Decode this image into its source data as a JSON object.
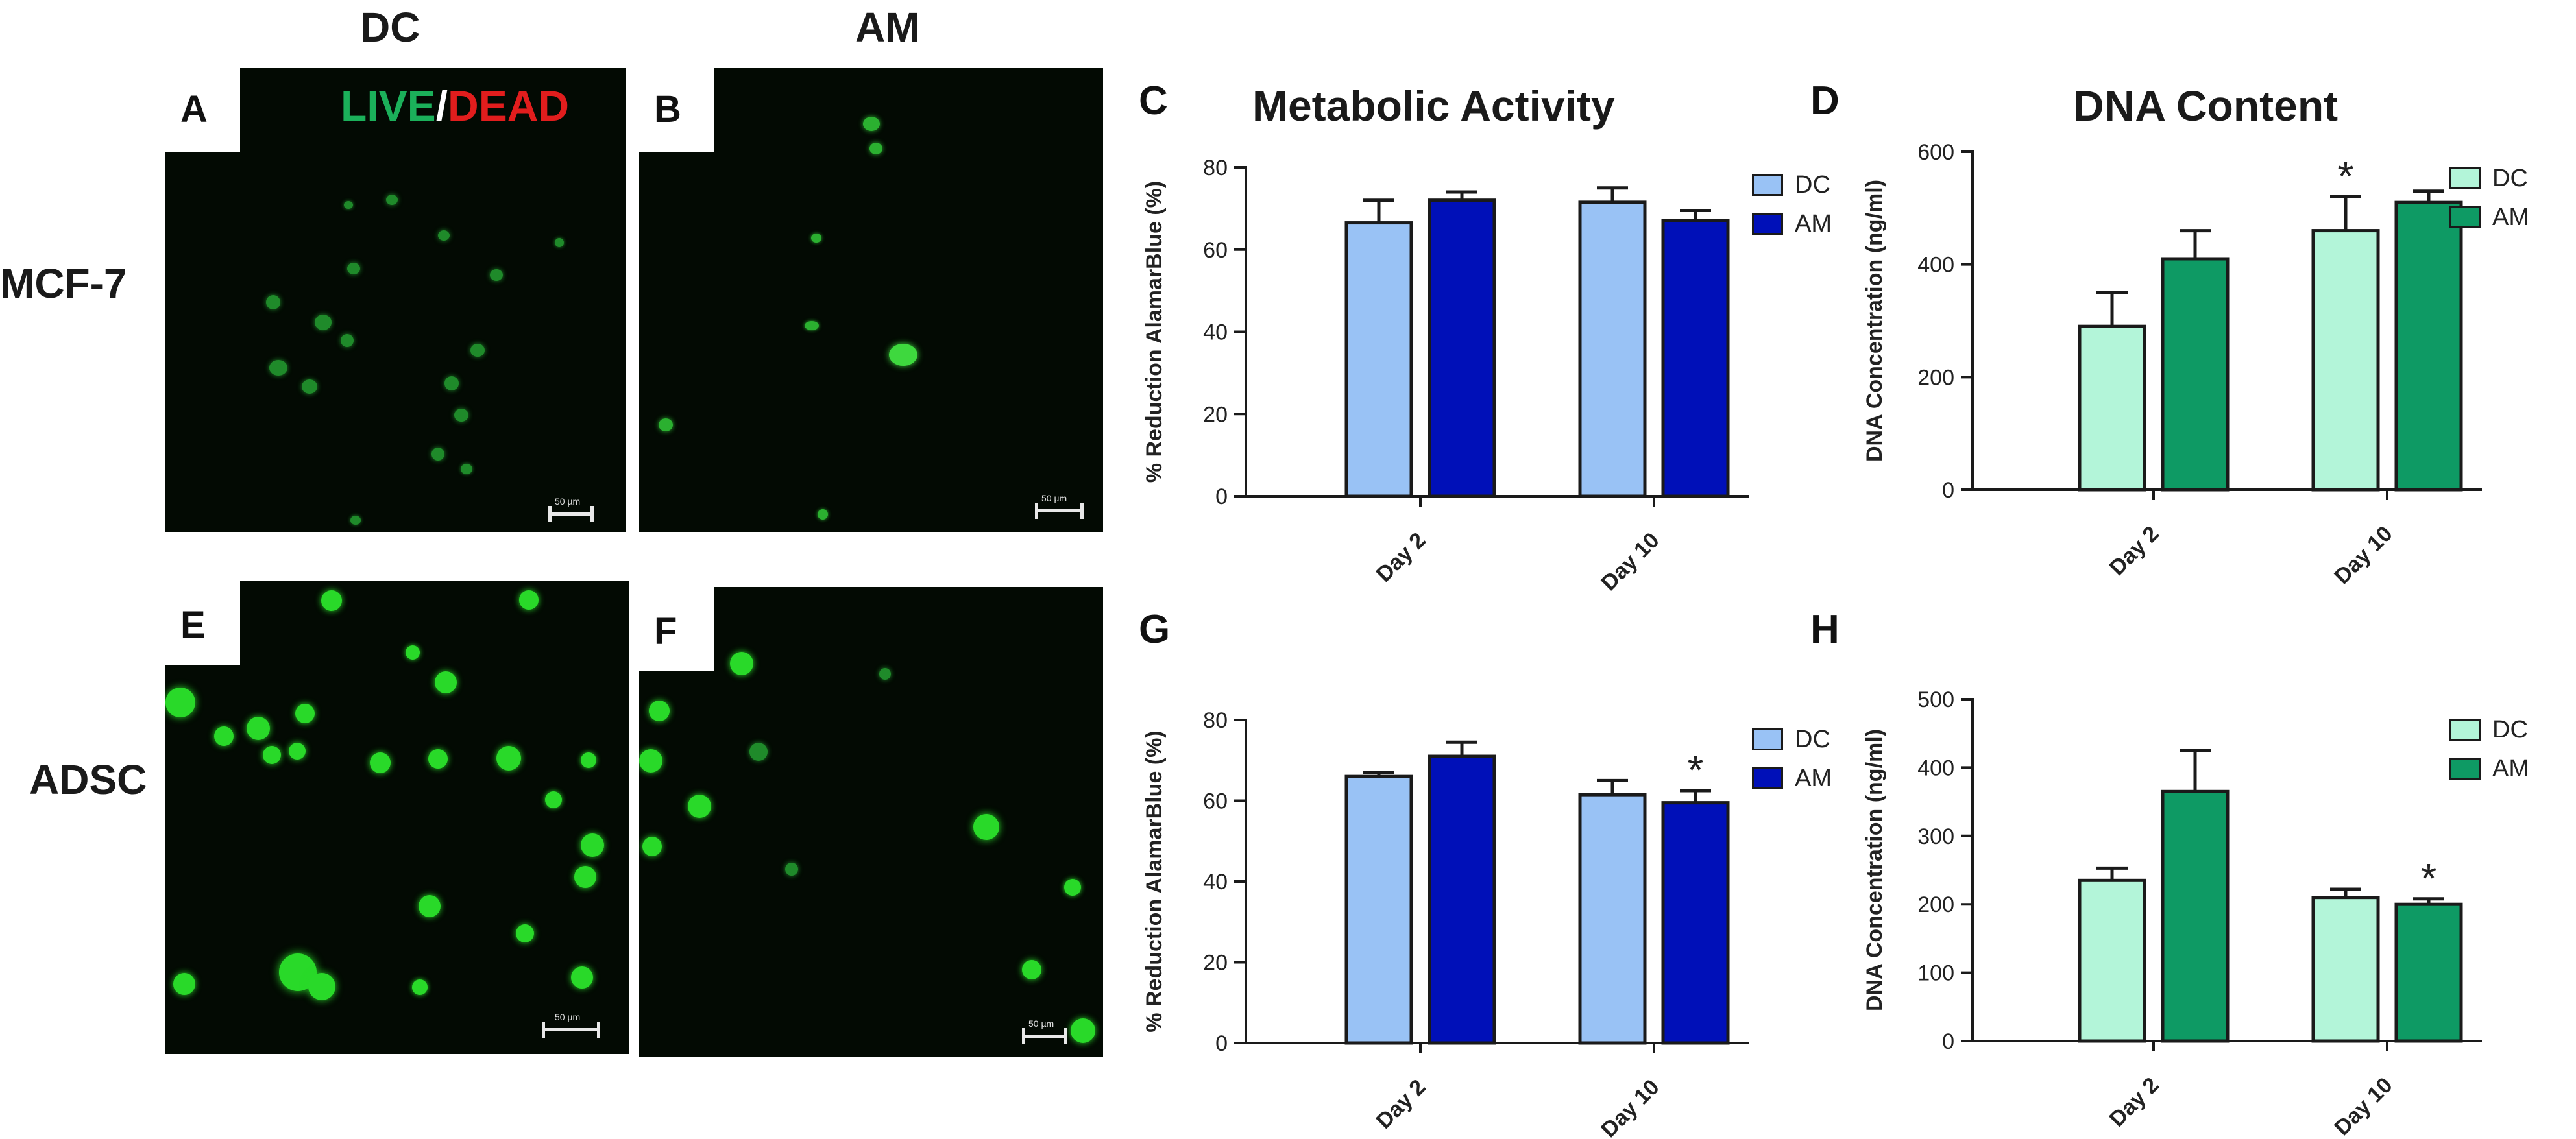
{
  "column_headers": {
    "dc": "DC",
    "am": "AM"
  },
  "row_headers": {
    "mcf7": "MCF-7",
    "adsc": "ADSC"
  },
  "live_dead": {
    "live": "LIVE",
    "slash": "/",
    "dead": "DEAD"
  },
  "panel_letters": {
    "a": "A",
    "b": "B",
    "c": "C",
    "d": "D",
    "e": "E",
    "f": "F",
    "g": "G",
    "h": "H"
  },
  "scale_bar_label": "50 µm",
  "colors": {
    "dc_blue": "#99c2f5",
    "am_blue": "#0010b8",
    "dc_green": "#b3f5d9",
    "am_green": "#0e9a64",
    "live_green": "#1bb05a",
    "dead_red": "#e11d1d",
    "axis": "#1a1a1a"
  },
  "chart_data": [
    {
      "id": "C",
      "type": "bar",
      "title": "Metabolic Activity",
      "ylabel": "% Reduction AlamarBlue (%)",
      "xlabel": "",
      "categories": [
        "Day 2",
        "Day 10"
      ],
      "ylim": [
        0,
        80
      ],
      "yticks": [
        0,
        20,
        40,
        60,
        80
      ],
      "series": [
        {
          "name": "DC",
          "values": [
            66.5,
            71.5
          ],
          "errors": [
            5.5,
            3.5
          ],
          "color": "#99c2f5"
        },
        {
          "name": "AM",
          "values": [
            72,
            67
          ],
          "errors": [
            2,
            2.5
          ],
          "color": "#0010b8"
        }
      ],
      "annotations": [],
      "grid": false,
      "legend": "right"
    },
    {
      "id": "D",
      "type": "bar",
      "title": "DNA Content",
      "ylabel": "DNA Concentration (ng/ml)",
      "xlabel": "",
      "categories": [
        "Day 2",
        "Day 10"
      ],
      "ylim": [
        0,
        600
      ],
      "yticks": [
        0,
        200,
        400,
        600
      ],
      "series": [
        {
          "name": "DC",
          "values": [
            290,
            460
          ],
          "errors": [
            60,
            60
          ],
          "color": "#b3f5d9"
        },
        {
          "name": "AM",
          "values": [
            410,
            510
          ],
          "errors": [
            50,
            20
          ],
          "color": "#0e9a64"
        }
      ],
      "annotations": [
        {
          "category": "Day 10",
          "series": "DC",
          "text": "*"
        }
      ],
      "grid": false,
      "legend": "right"
    },
    {
      "id": "G",
      "type": "bar",
      "title": "",
      "ylabel": "% Reduction AlamarBlue (%)",
      "xlabel": "",
      "categories": [
        "Day 2",
        "Day 10"
      ],
      "ylim": [
        0,
        80
      ],
      "yticks": [
        0,
        20,
        40,
        60,
        80
      ],
      "series": [
        {
          "name": "DC",
          "values": [
            66,
            61.5
          ],
          "errors": [
            1,
            3.5
          ],
          "color": "#99c2f5"
        },
        {
          "name": "AM",
          "values": [
            71,
            59.5
          ],
          "errors": [
            3.5,
            3
          ],
          "color": "#0010b8"
        }
      ],
      "annotations": [
        {
          "category": "Day 10",
          "series": "AM",
          "text": "*"
        }
      ],
      "grid": false,
      "legend": "right"
    },
    {
      "id": "H",
      "type": "bar",
      "title": "",
      "ylabel": "DNA Concentration (ng/ml)",
      "xlabel": "",
      "categories": [
        "Day 2",
        "Day 10"
      ],
      "ylim": [
        0,
        500
      ],
      "yticks": [
        0,
        100,
        200,
        300,
        400,
        500
      ],
      "series": [
        {
          "name": "DC",
          "values": [
            235,
            210
          ],
          "errors": [
            18,
            12
          ],
          "color": "#b3f5d9"
        },
        {
          "name": "AM",
          "values": [
            365,
            200
          ],
          "errors": [
            60,
            8
          ],
          "color": "#0e9a64"
        }
      ],
      "annotations": [
        {
          "category": "Day 10",
          "series": "AM",
          "text": "*"
        }
      ],
      "grid": false,
      "legend": "right"
    }
  ]
}
